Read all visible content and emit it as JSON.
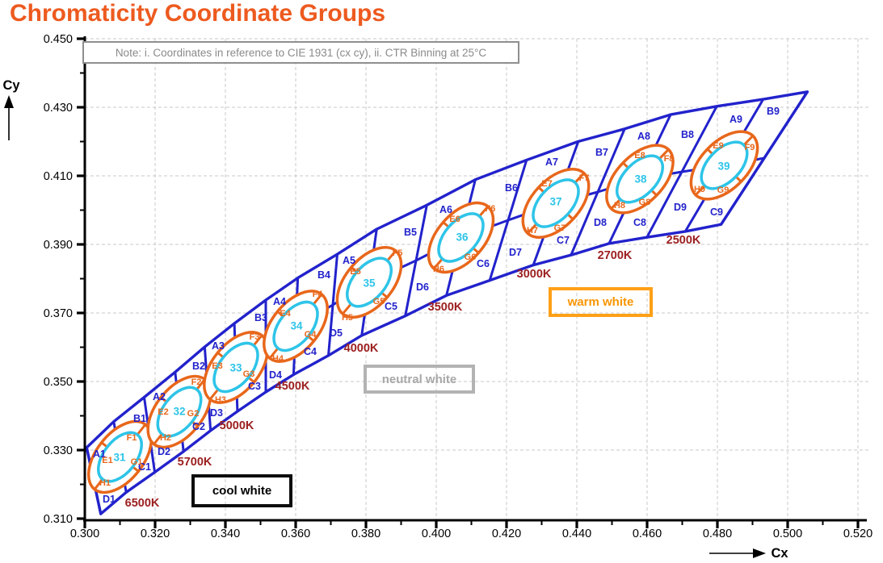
{
  "title": "Chromaticity Coordinate Groups",
  "note": "Note: i. Coordinates in reference to CIE 1931 (cx cy), ii. CTR Binning at 25°C",
  "colors": {
    "title": "#ed5a1f",
    "band_blue": "#2222cc",
    "bin_label_blue": "#2222cc",
    "outer_ellipse_orange": "#e8671b",
    "inner_ellipse_cyan": "#2ec4e8",
    "cct_dark_red": "#9c2020",
    "grid_gray": "#c9c9c9",
    "axis_black": "#000000",
    "note_gray": "#8a8a8a",
    "cool_box": "#0d0d0d",
    "neutral_box": "#b3b3b3",
    "warm_box": "#ffa018"
  },
  "axes": {
    "x": {
      "label": "Cx",
      "min": 0.3,
      "max": 0.52,
      "major_step": 0.02,
      "ticks": [
        "0.300",
        "0.320",
        "0.340",
        "0.360",
        "0.380",
        "0.400",
        "0.420",
        "0.440",
        "0.460",
        "0.480",
        "0.500",
        "0.520"
      ]
    },
    "y": {
      "label": "Cy",
      "min": 0.31,
      "max": 0.45,
      "major_step": 0.02,
      "ticks": [
        "0.450",
        "0.430",
        "0.410",
        "0.390",
        "0.370",
        "0.350",
        "0.330",
        "0.310"
      ]
    }
  },
  "annotations": [
    {
      "id": "cool",
      "label": "cool white"
    },
    {
      "id": "neutral",
      "label": "neutral white"
    },
    {
      "id": "warm",
      "label": "warm white"
    }
  ],
  "chart_data": {
    "type": "scatter",
    "subtype": "chromaticity_binning_map",
    "title": "Chromaticity Coordinate Groups",
    "xlabel": "Cx",
    "ylabel": "Cy",
    "xlim": [
      0.3,
      0.52
    ],
    "ylim": [
      0.31,
      0.45
    ],
    "grid": true,
    "groups": [
      {
        "number": "31",
        "cct": "6500K",
        "center": {
          "cx": 0.31,
          "cy": 0.328
        },
        "bins": [
          "A1",
          "B1",
          "C1",
          "D1",
          "E1",
          "F1",
          "G1",
          "H1"
        ]
      },
      {
        "number": "32",
        "cct": "5700K",
        "center": {
          "cx": 0.327,
          "cy": 0.341
        },
        "bins": [
          "A2",
          "B2",
          "C2",
          "D2",
          "E2",
          "F2",
          "G2",
          "H2"
        ]
      },
      {
        "number": "33",
        "cct": "5000K",
        "center": {
          "cx": 0.343,
          "cy": 0.354
        },
        "bins": [
          "A3",
          "B3",
          "C3",
          "D3",
          "E3",
          "F3",
          "G3",
          "H3"
        ]
      },
      {
        "number": "34",
        "cct": "4500K",
        "center": {
          "cx": 0.36,
          "cy": 0.366
        },
        "bins": [
          "A4",
          "B4",
          "C4",
          "D4",
          "E4",
          "F4",
          "G4",
          "H4"
        ]
      },
      {
        "number": "35",
        "cct": "4000K",
        "center": {
          "cx": 0.381,
          "cy": 0.379
        },
        "bins": [
          "A5",
          "B5",
          "C5",
          "D5",
          "E5",
          "F5",
          "G5",
          "H5"
        ]
      },
      {
        "number": "36",
        "cct": "3500K",
        "center": {
          "cx": 0.407,
          "cy": 0.392
        },
        "bins": [
          "A6",
          "B6",
          "C6",
          "D6",
          "E6",
          "F6",
          "G6",
          "H6"
        ]
      },
      {
        "number": "37",
        "cct": "3000K",
        "center": {
          "cx": 0.434,
          "cy": 0.402
        },
        "bins": [
          "A7",
          "B7",
          "C7",
          "D7",
          "E7",
          "F7",
          "G7",
          "H7"
        ]
      },
      {
        "number": "38",
        "cct": "2700K",
        "center": {
          "cx": 0.458,
          "cy": 0.409
        },
        "bins": [
          "A8",
          "B8",
          "C8",
          "D8",
          "E8",
          "F8",
          "G8",
          "H8"
        ]
      },
      {
        "number": "39",
        "cct": "2500K",
        "center": {
          "cx": 0.482,
          "cy": 0.413
        },
        "bins": [
          "A9",
          "B9",
          "C9",
          "D9",
          "E9",
          "F9",
          "G9",
          "H9"
        ]
      }
    ]
  }
}
